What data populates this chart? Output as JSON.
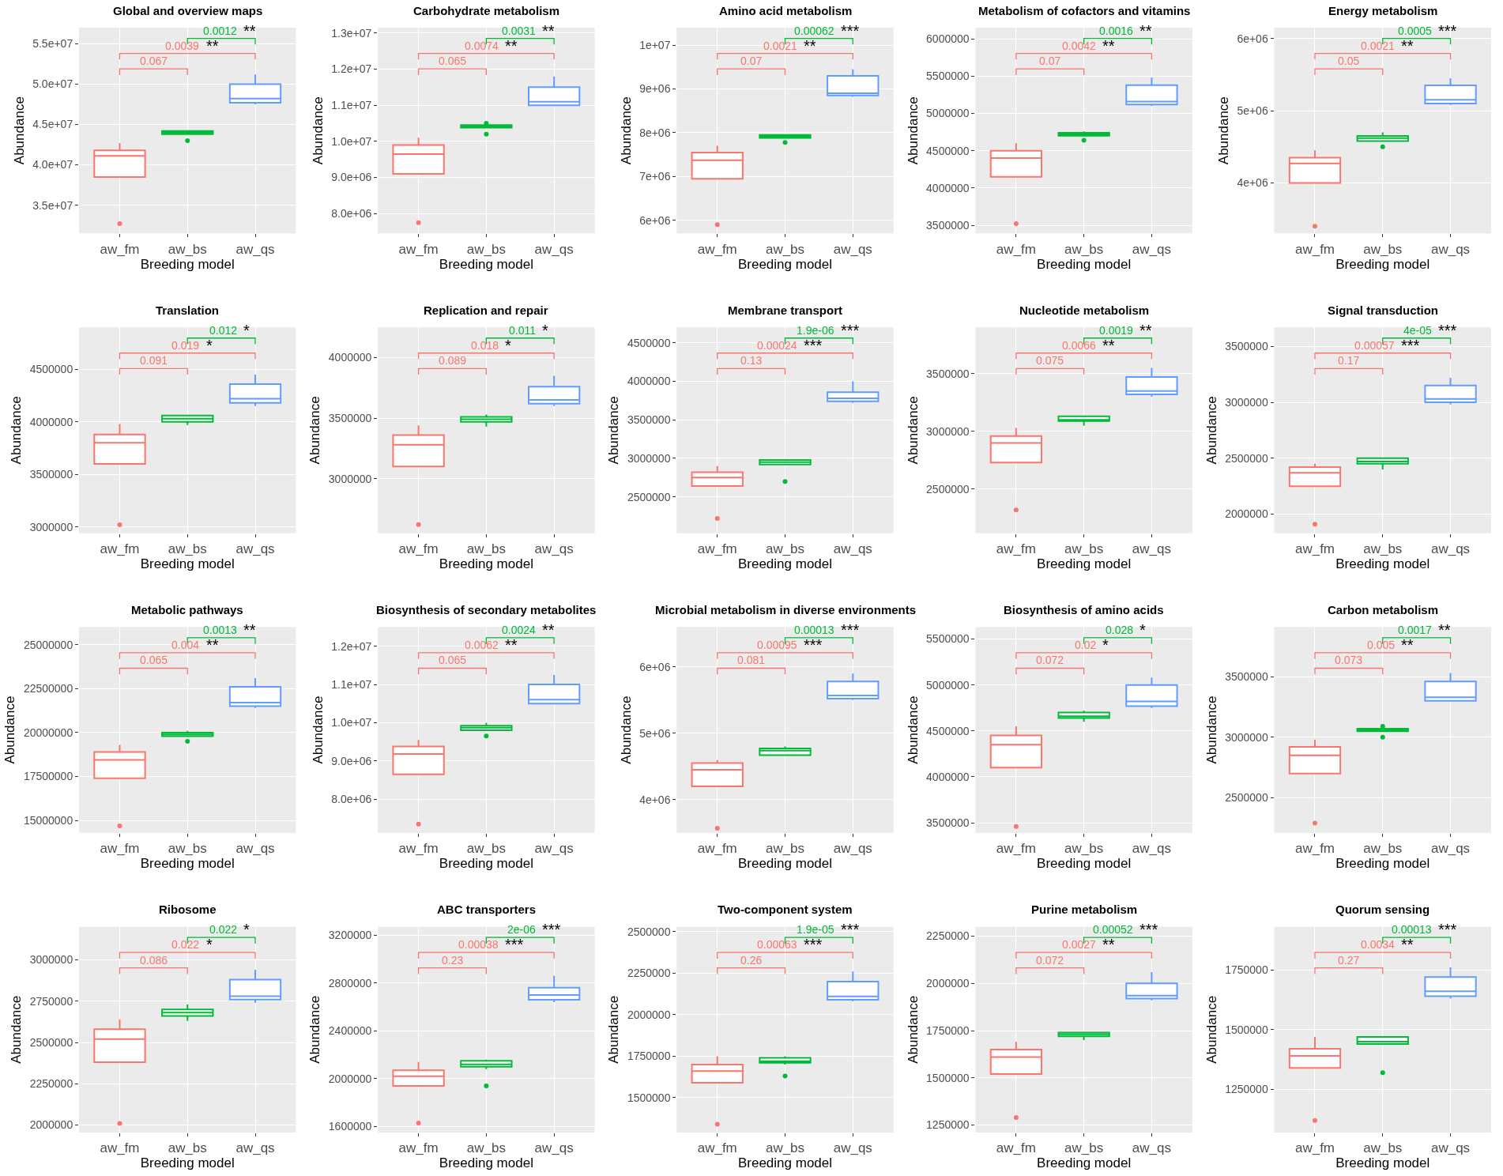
{
  "chart_data": [
    {
      "type": "box",
      "title": "Global and overview maps",
      "xlabel": "Breeding model",
      "ylabel": "Abundance",
      "categories": [
        "aw_fm",
        "aw_bs",
        "aw_qs"
      ],
      "colors": [
        "#f8766d",
        "#00ba38",
        "#619cff"
      ],
      "grid": true,
      "ylim": [
        31500000,
        57000000
      ],
      "yticks": [
        {
          "value": 35000000,
          "label": "3.5e+07"
        },
        {
          "value": 40000000,
          "label": "4.0e+07"
        },
        {
          "value": 45000000,
          "label": "4.5e+07"
        },
        {
          "value": 50000000,
          "label": "5.0e+07"
        },
        {
          "value": 55000000,
          "label": "5.5e+07"
        }
      ],
      "boxes": [
        {
          "low": 38500000,
          "q1": 38500000,
          "median": 41100000,
          "q3": 41800000,
          "high": 42700000,
          "outliers": [
            32700000
          ]
        },
        {
          "low": 43800000,
          "q1": 43800000,
          "median": 44000000,
          "q3": 44200000,
          "high": 44200000,
          "outliers": [
            43000000
          ]
        },
        {
          "low": 47500000,
          "q1": 47700000,
          "median": 48200000,
          "q3": 50000000,
          "high": 51200000
        }
      ],
      "annotations": [
        "0.067",
        "0.0039",
        "**",
        "0.0012",
        "**"
      ]
    },
    {
      "type": "box",
      "title": "Carbohydrate metabolism",
      "xlabel": "Breeding model",
      "ylabel": "Abundance",
      "categories": [
        "aw_fm",
        "aw_bs",
        "aw_qs"
      ],
      "colors": [
        "#f8766d",
        "#00ba38",
        "#619cff"
      ],
      "grid": true,
      "ylim": [
        7450000,
        13150000
      ],
      "yticks": [
        {
          "value": 8000000,
          "label": "8.0e+06"
        },
        {
          "value": 9000000,
          "label": "9.0e+06"
        },
        {
          "value": 10000000,
          "label": "1.0e+07"
        },
        {
          "value": 11000000,
          "label": "1.1e+07"
        },
        {
          "value": 12000000,
          "label": "1.2e+07"
        },
        {
          "value": 13000000,
          "label": "1.3e+07"
        }
      ],
      "boxes": [
        {
          "low": 9100000,
          "q1": 9100000,
          "median": 9650000,
          "q3": 9900000,
          "high": 10100000,
          "outliers": [
            7750000
          ]
        },
        {
          "low": 10380000,
          "q1": 10380000,
          "median": 10420000,
          "q3": 10450000,
          "high": 10450000,
          "outliers": [
            10200000,
            10500000
          ]
        },
        {
          "low": 11000000,
          "q1": 11000000,
          "median": 11100000,
          "q3": 11500000,
          "high": 11800000
        }
      ],
      "annotations": [
        "0.065",
        "0.0074",
        "**",
        "0.0031",
        "**"
      ]
    },
    {
      "type": "box",
      "title": "Amino acid metabolism",
      "xlabel": "Breeding model",
      "ylabel": "Abundance",
      "categories": [
        "aw_fm",
        "aw_bs",
        "aw_qs"
      ],
      "colors": [
        "#f8766d",
        "#00ba38",
        "#619cff"
      ],
      "grid": true,
      "ylim": [
        5700000,
        10400000
      ],
      "yticks": [
        {
          "value": 6000000,
          "label": "6e+06"
        },
        {
          "value": 7000000,
          "label": "7e+06"
        },
        {
          "value": 8000000,
          "label": "8e+06"
        },
        {
          "value": 9000000,
          "label": "9e+06"
        },
        {
          "value": 10000000,
          "label": "1e+07"
        }
      ],
      "boxes": [
        {
          "low": 6950000,
          "q1": 6950000,
          "median": 7370000,
          "q3": 7550000,
          "high": 7700000,
          "outliers": [
            5900000
          ]
        },
        {
          "low": 7880000,
          "q1": 7880000,
          "median": 7920000,
          "q3": 7950000,
          "high": 7950000,
          "outliers": [
            7780000
          ]
        },
        {
          "low": 8820000,
          "q1": 8850000,
          "median": 8900000,
          "q3": 9300000,
          "high": 9450000
        }
      ],
      "annotations": [
        "0.07",
        "0.0021",
        "**",
        "0.00062",
        "***"
      ]
    },
    {
      "type": "box",
      "title": "Metabolism of cofactors and vitamins",
      "xlabel": "Breeding model",
      "ylabel": "Abundance",
      "categories": [
        "aw_fm",
        "aw_bs",
        "aw_qs"
      ],
      "colors": [
        "#f8766d",
        "#00ba38",
        "#619cff"
      ],
      "grid": true,
      "ylim": [
        3390000,
        6150000
      ],
      "yticks": [
        3500000,
        4000000,
        4500000,
        5000000,
        5500000,
        6000000
      ],
      "boxes": [
        {
          "low": 4150000,
          "q1": 4150000,
          "median": 4400000,
          "q3": 4500000,
          "high": 4600000,
          "outliers": [
            3520000
          ]
        },
        {
          "low": 4700000,
          "q1": 4700000,
          "median": 4720000,
          "q3": 4740000,
          "high": 4760000,
          "outliers": [
            4640000
          ]
        },
        {
          "low": 5100000,
          "q1": 5120000,
          "median": 5160000,
          "q3": 5380000,
          "high": 5480000
        }
      ],
      "annotations": [
        "0.07",
        "0.0042",
        "**",
        "0.0016",
        "**"
      ]
    },
    {
      "type": "box",
      "title": "Energy metabolism",
      "xlabel": "Breeding model",
      "ylabel": "Abundance",
      "categories": [
        "aw_fm",
        "aw_bs",
        "aw_qs"
      ],
      "colors": [
        "#f8766d",
        "#00ba38",
        "#619cff"
      ],
      "grid": true,
      "ylim": [
        3300000,
        6150000
      ],
      "yticks": [
        {
          "value": 4000000,
          "label": "4e+06"
        },
        {
          "value": 5000000,
          "label": "5e+06"
        },
        {
          "value": 6000000,
          "label": "6e+06"
        }
      ],
      "boxes": [
        {
          "low": 4000000,
          "q1": 4000000,
          "median": 4270000,
          "q3": 4350000,
          "high": 4450000,
          "outliers": [
            3400000
          ]
        },
        {
          "low": 4580000,
          "q1": 4580000,
          "median": 4620000,
          "q3": 4650000,
          "high": 4700000,
          "outliers": [
            4500000
          ]
        },
        {
          "low": 5080000,
          "q1": 5100000,
          "median": 5150000,
          "q3": 5350000,
          "high": 5450000
        }
      ],
      "annotations": [
        "0.05",
        "0.0021",
        "**",
        "0.0005",
        "***"
      ]
    },
    {
      "type": "box",
      "title": "Translation",
      "xlabel": "Breeding model",
      "ylabel": "Abundance",
      "categories": [
        "aw_fm",
        "aw_bs",
        "aw_qs"
      ],
      "colors": [
        "#f8766d",
        "#00ba38",
        "#619cff"
      ],
      "grid": true,
      "ylim": [
        2940000,
        4900000
      ],
      "yticks": [
        3000000,
        3500000,
        4000000,
        4500000
      ],
      "boxes": [
        {
          "low": 3600000,
          "q1": 3600000,
          "median": 3800000,
          "q3": 3880000,
          "high": 3980000,
          "outliers": [
            3020000
          ]
        },
        {
          "low": 3970000,
          "q1": 4000000,
          "median": 4030000,
          "q3": 4060000,
          "high": 4060000
        },
        {
          "low": 4150000,
          "q1": 4180000,
          "median": 4220000,
          "q3": 4360000,
          "high": 4450000
        }
      ],
      "annotations": [
        "0.091",
        "0.019",
        "*",
        "0.012",
        "*"
      ]
    },
    {
      "type": "box",
      "title": "Replication and repair",
      "xlabel": "Breeding model",
      "ylabel": "Abundance",
      "categories": [
        "aw_fm",
        "aw_bs",
        "aw_qs"
      ],
      "colors": [
        "#f8766d",
        "#00ba38",
        "#619cff"
      ],
      "grid": true,
      "ylim": [
        2550000,
        4250000
      ],
      "yticks": [
        3000000,
        3500000,
        4000000
      ],
      "boxes": [
        {
          "low": 3100000,
          "q1": 3100000,
          "median": 3280000,
          "q3": 3360000,
          "high": 3440000,
          "outliers": [
            2620000
          ]
        },
        {
          "low": 3430000,
          "q1": 3470000,
          "median": 3490000,
          "q3": 3510000,
          "high": 3530000
        },
        {
          "low": 3600000,
          "q1": 3620000,
          "median": 3650000,
          "q3": 3760000,
          "high": 3850000
        }
      ],
      "annotations": [
        "0.089",
        "0.018",
        "*",
        "0.011",
        "*"
      ]
    },
    {
      "type": "box",
      "title": "Membrane transport",
      "xlabel": "Breeding model",
      "ylabel": "Abundance",
      "categories": [
        "aw_fm",
        "aw_bs",
        "aw_qs"
      ],
      "colors": [
        "#f8766d",
        "#00ba38",
        "#619cff"
      ],
      "grid": true,
      "ylim": [
        2030000,
        4700000
      ],
      "yticks": [
        2500000,
        3000000,
        3500000,
        4000000,
        4500000
      ],
      "boxes": [
        {
          "low": 2640000,
          "q1": 2640000,
          "median": 2750000,
          "q3": 2820000,
          "high": 2900000,
          "outliers": [
            2220000
          ]
        },
        {
          "low": 2920000,
          "q1": 2920000,
          "median": 2950000,
          "q3": 2980000,
          "high": 2980000,
          "outliers": [
            2700000
          ]
        },
        {
          "low": 3720000,
          "q1": 3740000,
          "median": 3780000,
          "q3": 3860000,
          "high": 4000000
        }
      ],
      "annotations": [
        "0.13",
        "0.00024",
        "***",
        "1.9e-06",
        "***"
      ]
    },
    {
      "type": "box",
      "title": "Nucleotide metabolism",
      "xlabel": "Breeding model",
      "ylabel": "Abundance",
      "categories": [
        "aw_fm",
        "aw_bs",
        "aw_qs"
      ],
      "colors": [
        "#f8766d",
        "#00ba38",
        "#619cff"
      ],
      "grid": true,
      "ylim": [
        2120000,
        3900000
      ],
      "yticks": [
        2500000,
        3000000,
        3500000
      ],
      "boxes": [
        {
          "low": 2730000,
          "q1": 2730000,
          "median": 2900000,
          "q3": 2960000,
          "high": 3030000,
          "outliers": [
            2320000
          ]
        },
        {
          "low": 3050000,
          "q1": 3090000,
          "median": 3100000,
          "q3": 3130000,
          "high": 3130000
        },
        {
          "low": 3300000,
          "q1": 3320000,
          "median": 3350000,
          "q3": 3470000,
          "high": 3550000
        }
      ],
      "annotations": [
        "0.075",
        "0.0066",
        "**",
        "0.0019",
        "**"
      ]
    },
    {
      "type": "box",
      "title": "Signal transduction",
      "xlabel": "Breeding model",
      "ylabel": "Abundance",
      "categories": [
        "aw_fm",
        "aw_bs",
        "aw_qs"
      ],
      "colors": [
        "#f8766d",
        "#00ba38",
        "#619cff"
      ],
      "grid": true,
      "ylim": [
        1830000,
        3670000
      ],
      "yticks": [
        2000000,
        2500000,
        3000000,
        3500000
      ],
      "boxes": [
        {
          "low": 2250000,
          "q1": 2250000,
          "median": 2370000,
          "q3": 2420000,
          "high": 2450000,
          "outliers": [
            1910000
          ]
        },
        {
          "low": 2400000,
          "q1": 2450000,
          "median": 2470000,
          "q3": 2500000,
          "high": 2500000
        },
        {
          "low": 2980000,
          "q1": 3000000,
          "median": 3030000,
          "q3": 3150000,
          "high": 3220000
        }
      ],
      "annotations": [
        "0.17",
        "0.00057",
        "***",
        "4e-05",
        "***"
      ]
    },
    {
      "type": "box",
      "title": "Metabolic pathways",
      "xlabel": "Breeding model",
      "ylabel": "Abundance",
      "categories": [
        "aw_fm",
        "aw_bs",
        "aw_qs"
      ],
      "colors": [
        "#f8766d",
        "#00ba38",
        "#619cff"
      ],
      "grid": true,
      "ylim": [
        14300000,
        26000000
      ],
      "yticks": [
        15000000,
        17500000,
        20000000,
        22500000,
        25000000
      ],
      "boxes": [
        {
          "low": 17400000,
          "q1": 17400000,
          "median": 18450000,
          "q3": 18900000,
          "high": 19300000,
          "outliers": [
            14700000
          ]
        },
        {
          "low": 19800000,
          "q1": 19800000,
          "median": 19900000,
          "q3": 20000000,
          "high": 20100000,
          "outliers": [
            19500000
          ]
        },
        {
          "low": 21400000,
          "q1": 21500000,
          "median": 21700000,
          "q3": 22600000,
          "high": 23100000
        }
      ],
      "annotations": [
        "0.065",
        "0.004",
        "**",
        "0.0013",
        "**"
      ]
    },
    {
      "type": "box",
      "title": "Biosynthesis of secondary metabolites",
      "xlabel": "Breeding model",
      "ylabel": "Abundance",
      "categories": [
        "aw_fm",
        "aw_bs",
        "aw_qs"
      ],
      "colors": [
        "#f8766d",
        "#00ba38",
        "#619cff"
      ],
      "grid": true,
      "ylim": [
        7120000,
        12500000
      ],
      "yticks": [
        {
          "value": 8000000,
          "label": "8.0e+06"
        },
        {
          "value": 9000000,
          "label": "9.0e+06"
        },
        {
          "value": 10000000,
          "label": "1.0e+07"
        },
        {
          "value": 11000000,
          "label": "1.1e+07"
        },
        {
          "value": 12000000,
          "label": "1.2e+07"
        }
      ],
      "boxes": [
        {
          "low": 8650000,
          "q1": 8650000,
          "median": 9180000,
          "q3": 9380000,
          "high": 9550000,
          "outliers": [
            7350000
          ]
        },
        {
          "low": 9800000,
          "q1": 9800000,
          "median": 9870000,
          "q3": 9920000,
          "high": 10000000,
          "outliers": [
            9650000
          ]
        },
        {
          "low": 10500000,
          "q1": 10500000,
          "median": 10600000,
          "q3": 11000000,
          "high": 11250000
        }
      ],
      "annotations": [
        "0.065",
        "0.0062",
        "**",
        "0.0024",
        "**"
      ]
    },
    {
      "type": "box",
      "title": "Microbial metabolism in diverse environments",
      "xlabel": "Breeding model",
      "ylabel": "Abundance",
      "categories": [
        "aw_fm",
        "aw_bs",
        "aw_qs"
      ],
      "colors": [
        "#f8766d",
        "#00ba38",
        "#619cff"
      ],
      "grid": true,
      "ylim": [
        3500000,
        6600000
      ],
      "yticks": [
        {
          "value": 4000000,
          "label": "4e+06"
        },
        {
          "value": 5000000,
          "label": "5e+06"
        },
        {
          "value": 6000000,
          "label": "6e+06"
        }
      ],
      "boxes": [
        {
          "low": 4200000,
          "q1": 4200000,
          "median": 4450000,
          "q3": 4550000,
          "high": 4600000,
          "outliers": [
            3570000
          ]
        },
        {
          "low": 4670000,
          "q1": 4670000,
          "median": 4740000,
          "q3": 4770000,
          "high": 4800000
        },
        {
          "low": 5500000,
          "q1": 5520000,
          "median": 5570000,
          "q3": 5780000,
          "high": 5900000
        }
      ],
      "annotations": [
        "0.081",
        "0.00095",
        "***",
        "0.00013",
        "***"
      ]
    },
    {
      "type": "box",
      "title": "Biosynthesis of amino acids",
      "xlabel": "Breeding model",
      "ylabel": "Abundance",
      "categories": [
        "aw_fm",
        "aw_bs",
        "aw_qs"
      ],
      "colors": [
        "#f8766d",
        "#00ba38",
        "#619cff"
      ],
      "grid": true,
      "ylim": [
        3390000,
        5630000
      ],
      "yticks": [
        3500000,
        4000000,
        4500000,
        5000000,
        5500000
      ],
      "boxes": [
        {
          "low": 4100000,
          "q1": 4100000,
          "median": 4350000,
          "q3": 4450000,
          "high": 4550000,
          "outliers": [
            3460000
          ]
        },
        {
          "low": 4600000,
          "q1": 4640000,
          "median": 4660000,
          "q3": 4700000,
          "high": 4720000
        },
        {
          "low": 4750000,
          "q1": 4770000,
          "median": 4820000,
          "q3": 5000000,
          "high": 5080000
        }
      ],
      "annotations": [
        "0.072",
        "0.02",
        "*",
        "0.028",
        "*"
      ]
    },
    {
      "type": "box",
      "title": "Carbon metabolism",
      "xlabel": "Breeding model",
      "ylabel": "Abundance",
      "categories": [
        "aw_fm",
        "aw_bs",
        "aw_qs"
      ],
      "colors": [
        "#f8766d",
        "#00ba38",
        "#619cff"
      ],
      "grid": true,
      "ylim": [
        2210000,
        3910000
      ],
      "yticks": [
        2500000,
        3000000,
        3500000
      ],
      "boxes": [
        {
          "low": 2700000,
          "q1": 2700000,
          "median": 2850000,
          "q3": 2920000,
          "high": 2980000,
          "outliers": [
            2290000
          ]
        },
        {
          "low": 3050000,
          "q1": 3050000,
          "median": 3060000,
          "q3": 3070000,
          "high": 3070000,
          "outliers": [
            3000000,
            3090000
          ]
        },
        {
          "low": 3300000,
          "q1": 3300000,
          "median": 3330000,
          "q3": 3460000,
          "high": 3530000
        }
      ],
      "annotations": [
        "0.073",
        "0.005",
        "**",
        "0.0017",
        "**"
      ]
    },
    {
      "type": "box",
      "title": "Ribosome",
      "xlabel": "Breeding model",
      "ylabel": "Abundance",
      "categories": [
        "aw_fm",
        "aw_bs",
        "aw_qs"
      ],
      "colors": [
        "#f8766d",
        "#00ba38",
        "#619cff"
      ],
      "grid": true,
      "ylim": [
        1955000,
        3200000
      ],
      "yticks": [
        2000000,
        2250000,
        2500000,
        2750000,
        3000000
      ],
      "boxes": [
        {
          "low": 2380000,
          "q1": 2380000,
          "median": 2520000,
          "q3": 2580000,
          "high": 2640000,
          "outliers": [
            2010000
          ]
        },
        {
          "low": 2630000,
          "q1": 2660000,
          "median": 2680000,
          "q3": 2700000,
          "high": 2730000
        },
        {
          "low": 2740000,
          "q1": 2760000,
          "median": 2780000,
          "q3": 2880000,
          "high": 2940000
        }
      ],
      "annotations": [
        "0.086",
        "0.022",
        "*",
        "0.022",
        "*"
      ]
    },
    {
      "type": "box",
      "title": "ABC transporters",
      "xlabel": "Breeding model",
      "ylabel": "Abundance",
      "categories": [
        "aw_fm",
        "aw_bs",
        "aw_qs"
      ],
      "colors": [
        "#f8766d",
        "#00ba38",
        "#619cff"
      ],
      "grid": true,
      "ylim": [
        1550000,
        3270000
      ],
      "yticks": [
        1600000,
        2000000,
        2400000,
        2800000,
        3200000
      ],
      "boxes": [
        {
          "low": 1940000,
          "q1": 1940000,
          "median": 2020000,
          "q3": 2070000,
          "high": 2140000,
          "outliers": [
            1630000
          ]
        },
        {
          "low": 2080000,
          "q1": 2100000,
          "median": 2120000,
          "q3": 2150000,
          "high": 2160000,
          "outliers": [
            1940000
          ]
        },
        {
          "low": 2640000,
          "q1": 2660000,
          "median": 2700000,
          "q3": 2760000,
          "high": 2860000
        }
      ],
      "annotations": [
        "0.23",
        "0.00038",
        "***",
        "2e-06",
        "***"
      ]
    },
    {
      "type": "box",
      "title": "Two-component system",
      "xlabel": "Breeding model",
      "ylabel": "Abundance",
      "categories": [
        "aw_fm",
        "aw_bs",
        "aw_qs"
      ],
      "colors": [
        "#f8766d",
        "#00ba38",
        "#619cff"
      ],
      "grid": true,
      "ylim": [
        1290000,
        2530000
      ],
      "yticks": [
        1500000,
        1750000,
        2000000,
        2250000,
        2500000
      ],
      "boxes": [
        {
          "low": 1590000,
          "q1": 1590000,
          "median": 1660000,
          "q3": 1700000,
          "high": 1750000,
          "outliers": [
            1340000
          ]
        },
        {
          "low": 1700000,
          "q1": 1710000,
          "median": 1720000,
          "q3": 1740000,
          "high": 1750000,
          "outliers": [
            1630000
          ]
        },
        {
          "low": 2080000,
          "q1": 2090000,
          "median": 2110000,
          "q3": 2200000,
          "high": 2260000
        }
      ],
      "annotations": [
        "0.26",
        "0.00063",
        "***",
        "1.9e-05",
        "***"
      ]
    },
    {
      "type": "box",
      "title": "Purine metabolism",
      "xlabel": "Breeding model",
      "ylabel": "Abundance",
      "categories": [
        "aw_fm",
        "aw_bs",
        "aw_qs"
      ],
      "colors": [
        "#f8766d",
        "#00ba38",
        "#619cff"
      ],
      "grid": true,
      "ylim": [
        1210000,
        2300000
      ],
      "yticks": [
        1250000,
        1500000,
        1750000,
        2000000,
        2250000
      ],
      "boxes": [
        {
          "low": 1520000,
          "q1": 1520000,
          "median": 1610000,
          "q3": 1650000,
          "high": 1690000,
          "outliers": [
            1290000
          ]
        },
        {
          "low": 1700000,
          "q1": 1720000,
          "median": 1730000,
          "q3": 1740000,
          "high": 1740000
        },
        {
          "low": 1910000,
          "q1": 1920000,
          "median": 1935000,
          "q3": 2000000,
          "high": 2060000
        }
      ],
      "annotations": [
        "0.072",
        "0.0027",
        "**",
        "0.00052",
        "***"
      ]
    },
    {
      "type": "box",
      "title": "Quorum sensing",
      "xlabel": "Breeding model",
      "ylabel": "Abundance",
      "categories": [
        "aw_fm",
        "aw_bs",
        "aw_qs"
      ],
      "colors": [
        "#f8766d",
        "#00ba38",
        "#619cff"
      ],
      "grid": true,
      "ylim": [
        1070000,
        1930000
      ],
      "yticks": [
        1250000,
        1500000,
        1750000
      ],
      "boxes": [
        {
          "low": 1340000,
          "q1": 1340000,
          "median": 1390000,
          "q3": 1420000,
          "high": 1470000,
          "outliers": [
            1120000
          ]
        },
        {
          "low": 1440000,
          "q1": 1440000,
          "median": 1450000,
          "q3": 1470000,
          "high": 1470000,
          "outliers": [
            1320000
          ]
        },
        {
          "low": 1630000,
          "q1": 1640000,
          "median": 1660000,
          "q3": 1720000,
          "high": 1760000
        }
      ],
      "annotations": [
        "0.27",
        "0.0034",
        "**",
        "0.00013",
        "***"
      ]
    }
  ]
}
